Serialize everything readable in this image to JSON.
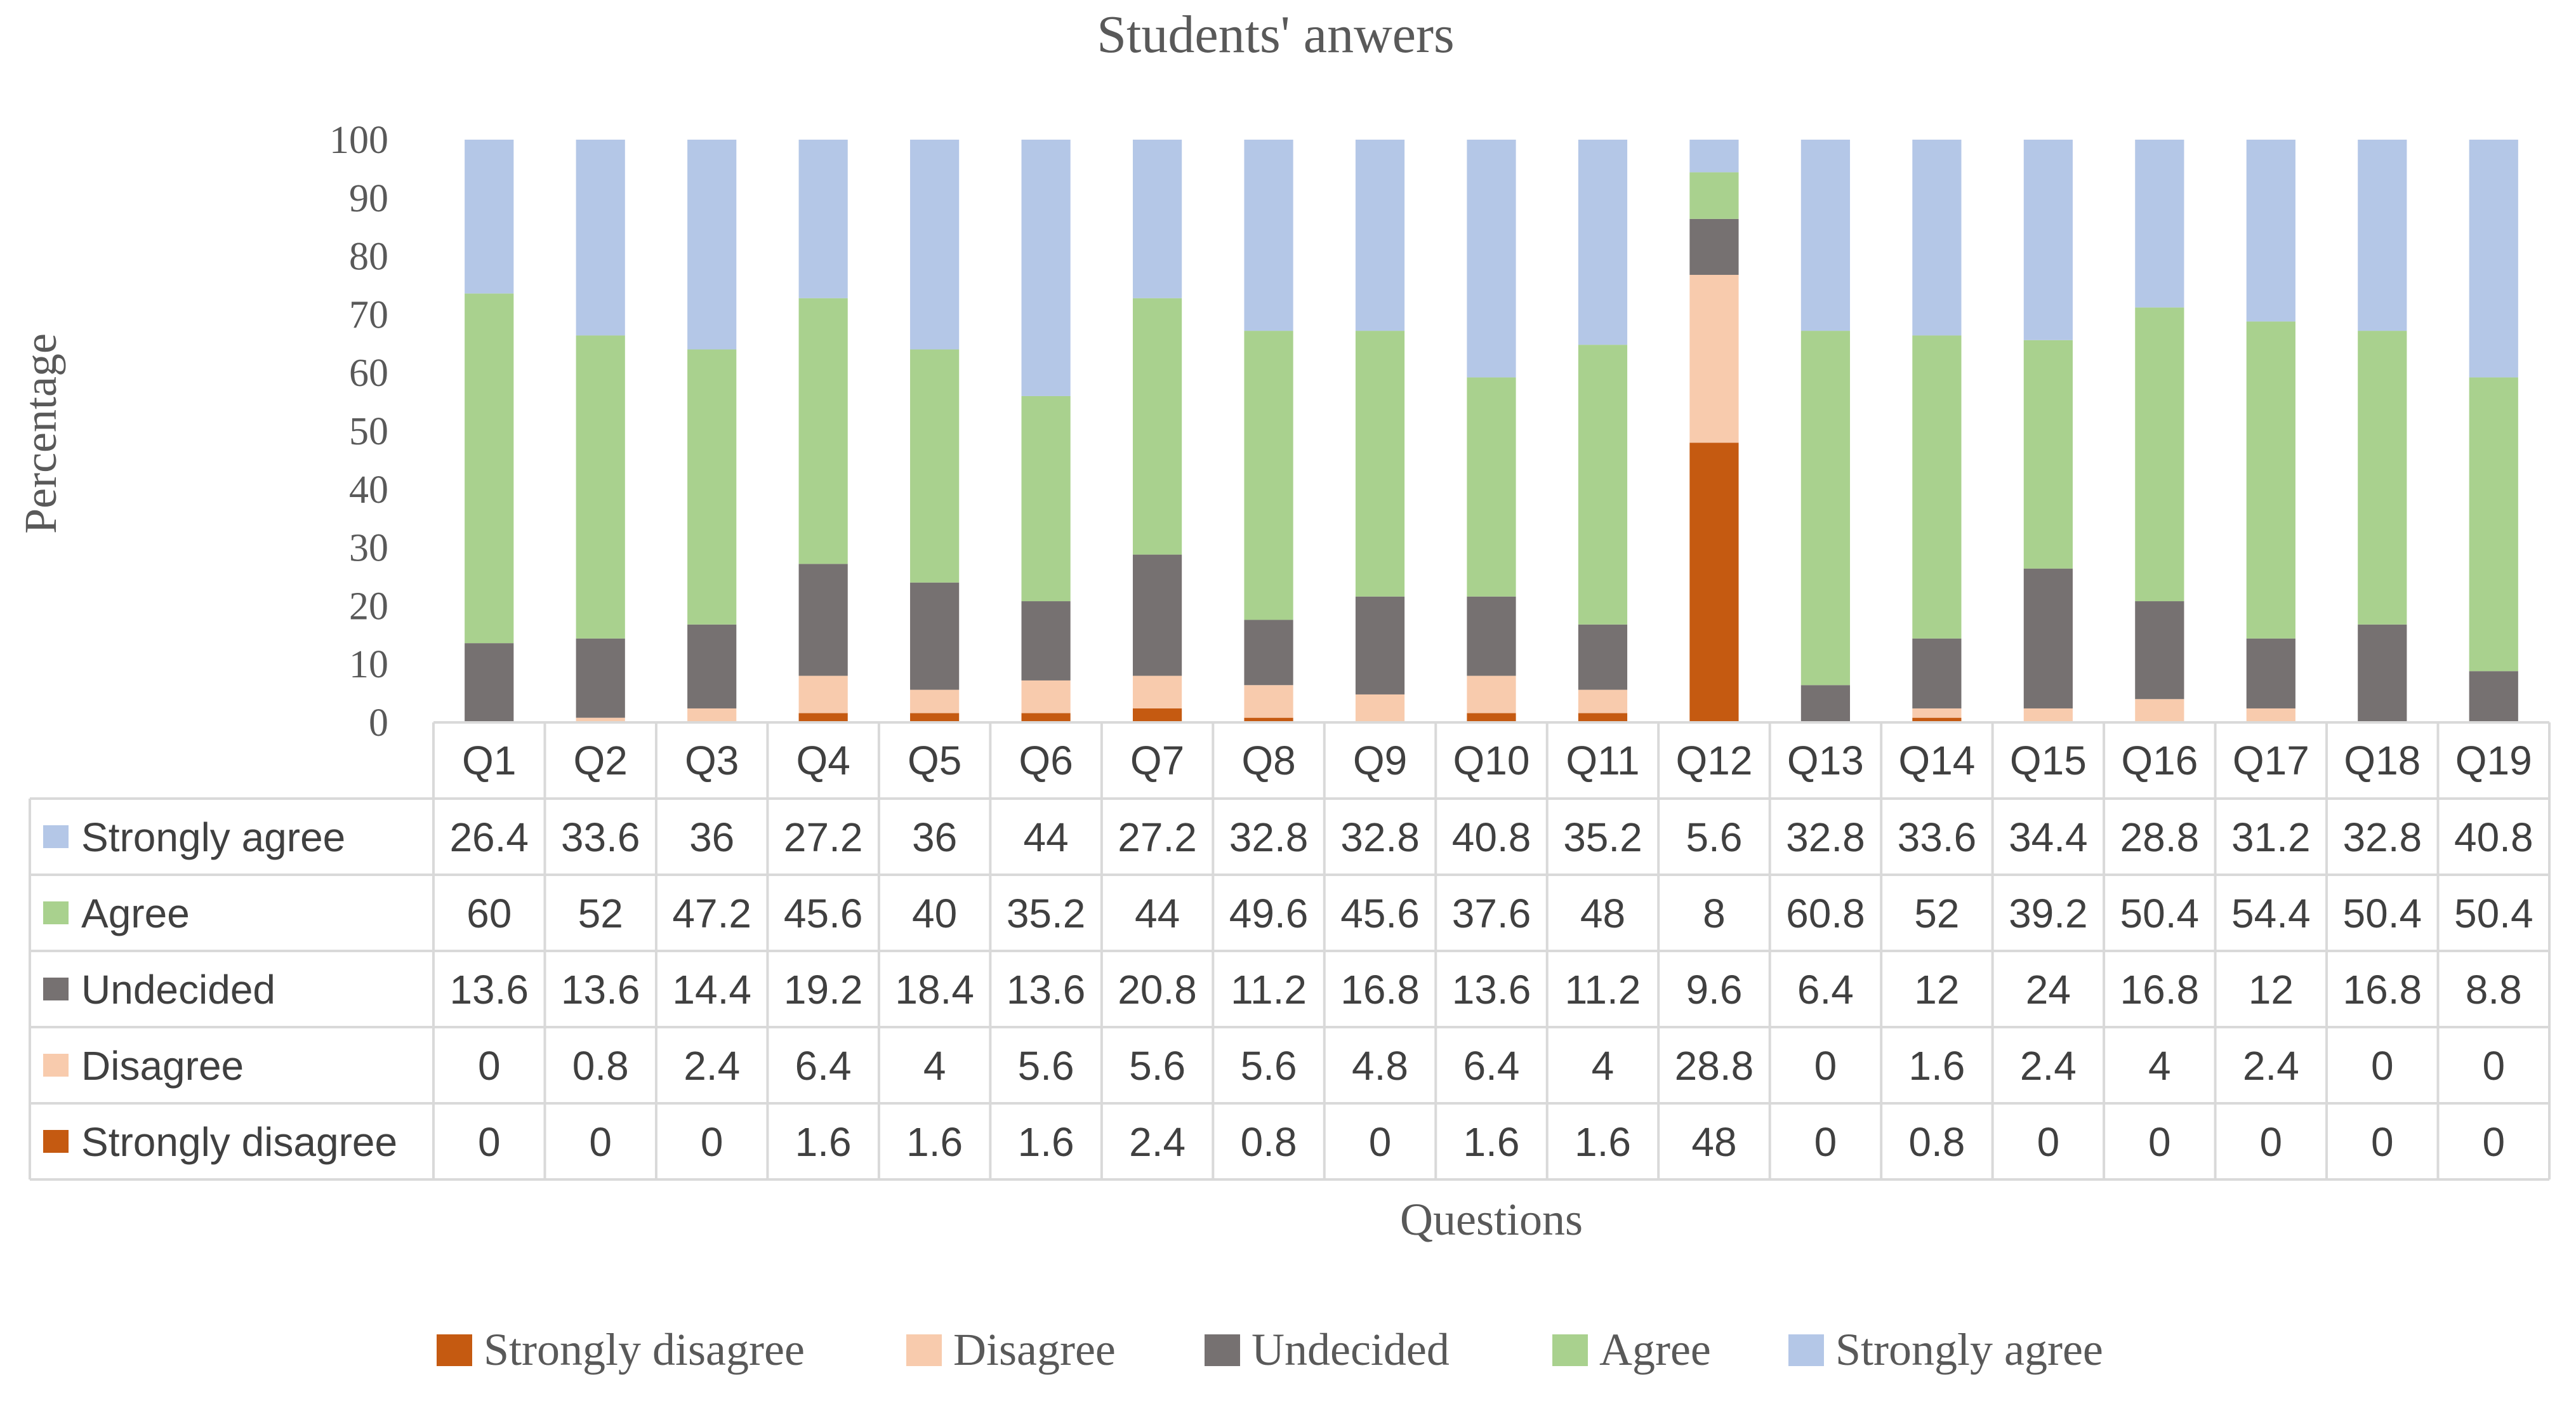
{
  "chart_data": {
    "type": "bar",
    "stacked": true,
    "title": "Students' anwers",
    "xlabel": "Questions",
    "ylabel": "Percentage",
    "ylim": [
      0,
      100
    ],
    "yticks": [
      0,
      10,
      20,
      30,
      40,
      50,
      60,
      70,
      80,
      90,
      100
    ],
    "grid": false,
    "categories": [
      "Q1",
      "Q2",
      "Q3",
      "Q4",
      "Q5",
      "Q6",
      "Q7",
      "Q8",
      "Q9",
      "Q10",
      "Q11",
      "Q12",
      "Q13",
      "Q14",
      "Q15",
      "Q16",
      "Q17",
      "Q18",
      "Q19"
    ],
    "series": [
      {
        "name": "Strongly disagree",
        "color": "#c55a11",
        "values": [
          0,
          0,
          0,
          1.6,
          1.6,
          1.6,
          2.4,
          0.8,
          0,
          1.6,
          1.6,
          48,
          0,
          0.8,
          0,
          0,
          0,
          0,
          0
        ]
      },
      {
        "name": "Disagree",
        "color": "#f8cbad",
        "values": [
          0,
          0.8,
          2.4,
          6.4,
          4,
          5.6,
          5.6,
          5.6,
          4.8,
          6.4,
          4,
          28.8,
          0,
          1.6,
          2.4,
          4,
          2.4,
          0,
          0
        ]
      },
      {
        "name": "Undecided",
        "color": "#767171",
        "values": [
          13.6,
          13.6,
          14.4,
          19.2,
          18.4,
          13.6,
          20.8,
          11.2,
          16.8,
          13.6,
          11.2,
          9.6,
          6.4,
          12,
          24,
          16.8,
          12,
          16.8,
          8.8
        ]
      },
      {
        "name": "Agree",
        "color": "#a9d18e",
        "values": [
          60,
          52,
          47.2,
          45.6,
          40,
          35.2,
          44,
          49.6,
          45.6,
          37.6,
          48,
          8,
          60.8,
          52,
          39.2,
          50.4,
          54.4,
          50.4,
          50.4
        ]
      },
      {
        "name": "Strongly agree",
        "color": "#b4c7e7",
        "values": [
          26.4,
          33.6,
          36,
          27.2,
          36,
          44,
          27.2,
          32.8,
          32.8,
          40.8,
          35.2,
          5.6,
          32.8,
          33.6,
          34.4,
          28.8,
          31.2,
          32.8,
          40.8
        ]
      }
    ],
    "table_row_order": [
      "Strongly agree",
      "Agree",
      "Undecided",
      "Disagree",
      "Strongly disagree"
    ],
    "legend_position": "bottom",
    "legend_order": [
      "Strongly disagree",
      "Disagree",
      "Undecided",
      "Agree",
      "Strongly agree"
    ]
  }
}
